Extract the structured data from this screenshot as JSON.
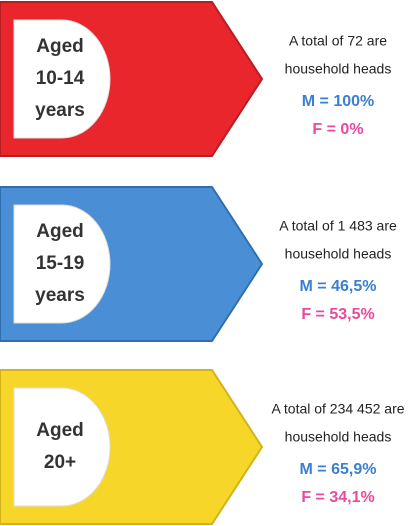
{
  "groups": [
    {
      "label": [
        "Aged",
        "10-14",
        "years"
      ],
      "total": [
        "A total of 72 are",
        "household heads"
      ],
      "male": "M = 100%",
      "female": "F = 0%"
    },
    {
      "label": [
        "Aged",
        "15-19",
        "years"
      ],
      "total": [
        "A total of 1 483 are",
        "household heads"
      ],
      "male": "M = 46,5%",
      "female": "F = 53,5%"
    },
    {
      "label": [
        "Aged",
        "20+"
      ],
      "total": [
        "A total of 234 452 are",
        "household heads"
      ],
      "male": "M = 65,9%",
      "female": "F = 34,1%"
    }
  ]
}
